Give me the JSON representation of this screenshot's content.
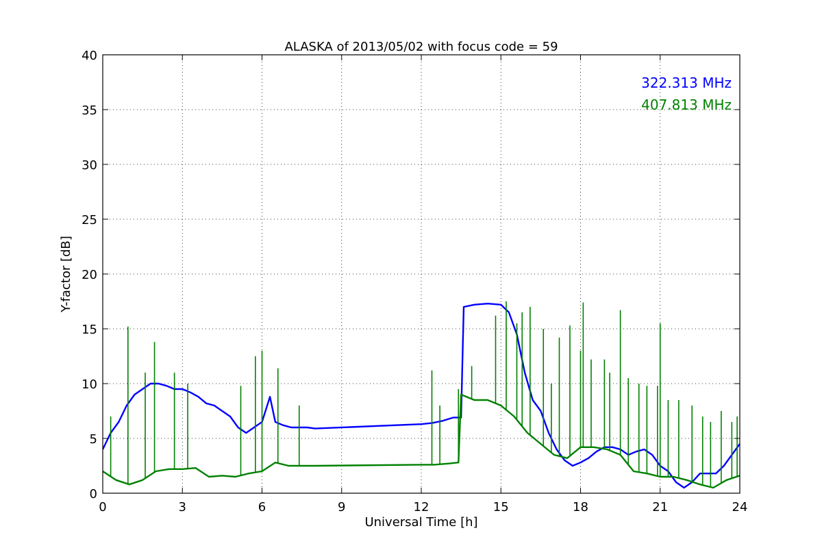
{
  "chart_data": {
    "type": "line",
    "title": "ALASKA of 2013/05/02 with focus code = 59",
    "xlabel": "Universal Time [h]",
    "ylabel": "Y-factor [dB]",
    "xlim": [
      0,
      24
    ],
    "ylim": [
      0,
      40
    ],
    "xticks": [
      0,
      3,
      6,
      9,
      12,
      15,
      18,
      21,
      24
    ],
    "yticks": [
      0,
      5,
      10,
      15,
      20,
      25,
      30,
      35,
      40
    ],
    "grid": true,
    "legend_position": "top-right",
    "series": [
      {
        "name": "322.313 MHz",
        "color": "#0000ff",
        "x": [
          0,
          0.3,
          0.6,
          0.9,
          1.2,
          1.5,
          1.8,
          2.1,
          2.4,
          2.7,
          3.0,
          3.3,
          3.6,
          3.9,
          4.2,
          4.5,
          4.8,
          5.1,
          5.4,
          5.7,
          6.0,
          6.3,
          6.5,
          6.8,
          7.1,
          7.4,
          7.7,
          8.0,
          12.0,
          12.4,
          12.8,
          13.2,
          13.5,
          13.6,
          14.0,
          14.5,
          15.0,
          15.3,
          15.6,
          15.9,
          16.2,
          16.5,
          16.8,
          17.1,
          17.4,
          17.7,
          18.0,
          18.3,
          18.6,
          18.9,
          19.2,
          19.5,
          19.8,
          20.1,
          20.4,
          20.7,
          21.0,
          21.3,
          21.6,
          21.9,
          22.2,
          22.5,
          22.8,
          23.1,
          23.4,
          23.7,
          24.0
        ],
        "y": [
          4.0,
          5.5,
          6.5,
          8.0,
          9.0,
          9.5,
          10.0,
          10.0,
          9.8,
          9.5,
          9.5,
          9.2,
          8.8,
          8.2,
          8.0,
          7.5,
          7.0,
          6.0,
          5.5,
          6.0,
          6.5,
          8.8,
          6.5,
          6.2,
          6.0,
          6.0,
          6.0,
          5.9,
          6.3,
          6.4,
          6.6,
          6.9,
          6.9,
          17.0,
          17.2,
          17.3,
          17.2,
          16.5,
          14.5,
          11.0,
          8.5,
          7.5,
          5.5,
          4.0,
          3.0,
          2.5,
          2.8,
          3.2,
          3.8,
          4.2,
          4.2,
          4.0,
          3.5,
          3.8,
          4.0,
          3.5,
          2.5,
          2.0,
          1.0,
          0.5,
          1.0,
          1.8,
          1.8,
          1.8,
          2.5,
          3.5,
          4.5
        ]
      },
      {
        "name": "407.813 MHz",
        "color": "#008000",
        "x": [
          0,
          0.5,
          1.0,
          1.5,
          2.0,
          2.5,
          3.0,
          3.5,
          4.0,
          4.5,
          5.0,
          5.5,
          6.0,
          6.5,
          7.0,
          7.5,
          8.0,
          12.0,
          12.5,
          13.0,
          13.4,
          13.5,
          14.0,
          14.5,
          15.0,
          15.5,
          16.0,
          16.5,
          17.0,
          17.5,
          18.0,
          18.5,
          19.0,
          19.5,
          20.0,
          20.5,
          21.0,
          21.5,
          22.0,
          22.5,
          23.0,
          23.5,
          24.0
        ],
        "y": [
          2.0,
          1.2,
          0.8,
          1.2,
          2.0,
          2.2,
          2.2,
          2.3,
          1.5,
          1.6,
          1.5,
          1.8,
          2.0,
          2.8,
          2.5,
          2.5,
          2.5,
          2.6,
          2.6,
          2.7,
          2.8,
          9.0,
          8.5,
          8.5,
          8.0,
          7.0,
          5.5,
          4.5,
          3.5,
          3.2,
          4.2,
          4.2,
          4.0,
          3.5,
          2.0,
          1.8,
          1.5,
          1.5,
          1.2,
          0.8,
          0.5,
          1.2,
          1.6
        ],
        "spikes": [
          [
            0.3,
            7.0
          ],
          [
            0.95,
            15.2
          ],
          [
            1.6,
            11.0
          ],
          [
            1.95,
            13.8
          ],
          [
            2.7,
            11.0
          ],
          [
            3.2,
            10.0
          ],
          [
            5.2,
            9.8
          ],
          [
            5.75,
            12.5
          ],
          [
            6.0,
            13.0
          ],
          [
            6.6,
            11.4
          ],
          [
            7.4,
            8.0
          ],
          [
            12.4,
            11.2
          ],
          [
            12.7,
            8.0
          ],
          [
            13.4,
            9.5
          ],
          [
            13.9,
            11.6
          ],
          [
            14.8,
            16.2
          ],
          [
            15.2,
            17.5
          ],
          [
            15.6,
            15.5
          ],
          [
            15.8,
            16.5
          ],
          [
            16.1,
            17.0
          ],
          [
            16.6,
            15.0
          ],
          [
            16.9,
            10.0
          ],
          [
            17.2,
            14.2
          ],
          [
            17.6,
            15.3
          ],
          [
            18.0,
            13.0
          ],
          [
            18.1,
            17.4
          ],
          [
            18.4,
            12.2
          ],
          [
            18.9,
            12.2
          ],
          [
            19.1,
            11.0
          ],
          [
            19.5,
            16.7
          ],
          [
            19.8,
            10.5
          ],
          [
            20.2,
            10.0
          ],
          [
            20.5,
            9.8
          ],
          [
            20.9,
            9.8
          ],
          [
            21.0,
            15.5
          ],
          [
            21.3,
            8.5
          ],
          [
            21.7,
            8.5
          ],
          [
            22.2,
            8.0
          ],
          [
            22.6,
            7.0
          ],
          [
            22.9,
            6.5
          ],
          [
            23.3,
            7.5
          ],
          [
            23.7,
            6.5
          ],
          [
            23.9,
            7.0
          ]
        ]
      }
    ]
  }
}
